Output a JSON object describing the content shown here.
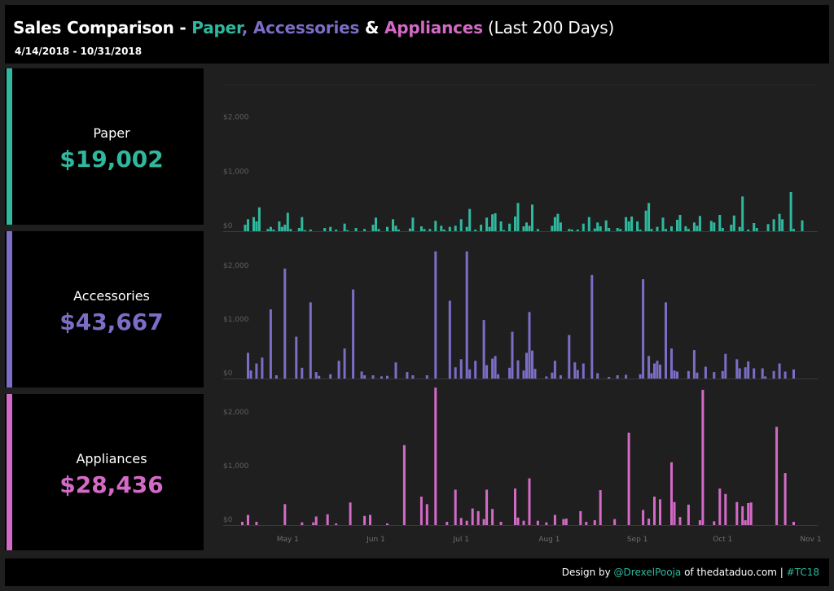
{
  "header": {
    "title_prefix": "Sales Comparison - ",
    "paper": "Paper",
    "comma": ",",
    "accessories": "Accessories",
    "amp": " & ",
    "appliances": "Appliances",
    "suffix": " (Last 200 Days)",
    "date_range": "4/14/2018 - 10/31/2018"
  },
  "colors": {
    "paper": "#2fb89e",
    "accessories": "#7a6ec6",
    "appliances": "#d36ac6"
  },
  "kpis": [
    {
      "label": "Paper",
      "value": "$19,002"
    },
    {
      "label": "Accessories",
      "value": "$43,667"
    },
    {
      "label": "Appliances",
      "value": "$28,436"
    }
  ],
  "footer": {
    "design_by": "Design by ",
    "handle": "@DrexelPooja",
    "of_site": " of thedataduo.com | ",
    "tag": "#TC18"
  },
  "chart_data": {
    "type": "bar",
    "x_range": [
      "2018-04-14",
      "2018-10-31"
    ],
    "x_ticks": [
      "May 1",
      "Jun 1",
      "Jul 1",
      "Aug 1",
      "Sep 1",
      "Oct 1",
      "Nov 1"
    ],
    "y_ticks": [
      "$0",
      "$1,000",
      "$2,000"
    ],
    "ylim": [
      0,
      2700
    ],
    "series": [
      {
        "name": "Paper",
        "points": [
          [
            "2018-04-16",
            120
          ],
          [
            "2018-04-17",
            220
          ],
          [
            "2018-04-19",
            260
          ],
          [
            "2018-04-20",
            180
          ],
          [
            "2018-04-21",
            440
          ],
          [
            "2018-04-24",
            40
          ],
          [
            "2018-04-25",
            80
          ],
          [
            "2018-04-26",
            30
          ],
          [
            "2018-04-28",
            180
          ],
          [
            "2018-04-29",
            80
          ],
          [
            "2018-04-30",
            120
          ],
          [
            "2018-05-01",
            340
          ],
          [
            "2018-05-02",
            40
          ],
          [
            "2018-05-05",
            60
          ],
          [
            "2018-05-06",
            260
          ],
          [
            "2018-05-07",
            20
          ],
          [
            "2018-05-09",
            30
          ],
          [
            "2018-05-14",
            60
          ],
          [
            "2018-05-16",
            80
          ],
          [
            "2018-05-18",
            30
          ],
          [
            "2018-05-21",
            140
          ],
          [
            "2018-05-22",
            20
          ],
          [
            "2018-05-25",
            60
          ],
          [
            "2018-05-28",
            40
          ],
          [
            "2018-05-31",
            120
          ],
          [
            "2018-06-01",
            250
          ],
          [
            "2018-06-02",
            40
          ],
          [
            "2018-06-05",
            80
          ],
          [
            "2018-06-07",
            220
          ],
          [
            "2018-06-08",
            100
          ],
          [
            "2018-06-09",
            30
          ],
          [
            "2018-06-13",
            50
          ],
          [
            "2018-06-14",
            250
          ],
          [
            "2018-06-17",
            90
          ],
          [
            "2018-06-18",
            40
          ],
          [
            "2018-06-20",
            40
          ],
          [
            "2018-06-22",
            190
          ],
          [
            "2018-06-24",
            100
          ],
          [
            "2018-06-25",
            30
          ],
          [
            "2018-06-27",
            80
          ],
          [
            "2018-06-29",
            100
          ],
          [
            "2018-07-01",
            220
          ],
          [
            "2018-07-03",
            80
          ],
          [
            "2018-07-04",
            410
          ],
          [
            "2018-07-06",
            30
          ],
          [
            "2018-07-08",
            120
          ],
          [
            "2018-07-10",
            250
          ],
          [
            "2018-07-11",
            80
          ],
          [
            "2018-07-12",
            310
          ],
          [
            "2018-07-13",
            330
          ],
          [
            "2018-07-15",
            180
          ],
          [
            "2018-07-16",
            20
          ],
          [
            "2018-07-18",
            140
          ],
          [
            "2018-07-20",
            270
          ],
          [
            "2018-07-21",
            520
          ],
          [
            "2018-07-23",
            90
          ],
          [
            "2018-07-24",
            160
          ],
          [
            "2018-07-25",
            100
          ],
          [
            "2018-07-26",
            490
          ],
          [
            "2018-07-28",
            40
          ],
          [
            "2018-08-02",
            100
          ],
          [
            "2018-08-03",
            260
          ],
          [
            "2018-08-04",
            320
          ],
          [
            "2018-08-05",
            160
          ],
          [
            "2018-08-08",
            40
          ],
          [
            "2018-08-09",
            30
          ],
          [
            "2018-08-11",
            30
          ],
          [
            "2018-08-13",
            140
          ],
          [
            "2018-08-15",
            260
          ],
          [
            "2018-08-17",
            50
          ],
          [
            "2018-08-18",
            160
          ],
          [
            "2018-08-19",
            90
          ],
          [
            "2018-08-21",
            200
          ],
          [
            "2018-08-22",
            60
          ],
          [
            "2018-08-25",
            60
          ],
          [
            "2018-08-26",
            40
          ],
          [
            "2018-08-28",
            260
          ],
          [
            "2018-08-29",
            180
          ],
          [
            "2018-08-30",
            270
          ],
          [
            "2018-09-01",
            180
          ],
          [
            "2018-09-02",
            30
          ],
          [
            "2018-09-04",
            380
          ],
          [
            "2018-09-05",
            520
          ],
          [
            "2018-09-06",
            40
          ],
          [
            "2018-09-08",
            80
          ],
          [
            "2018-09-10",
            250
          ],
          [
            "2018-09-11",
            40
          ],
          [
            "2018-09-13",
            90
          ],
          [
            "2018-09-15",
            210
          ],
          [
            "2018-09-16",
            300
          ],
          [
            "2018-09-18",
            90
          ],
          [
            "2018-09-19",
            40
          ],
          [
            "2018-09-21",
            160
          ],
          [
            "2018-09-22",
            100
          ],
          [
            "2018-09-23",
            280
          ],
          [
            "2018-09-27",
            190
          ],
          [
            "2018-09-28",
            160
          ],
          [
            "2018-09-30",
            300
          ],
          [
            "2018-10-01",
            60
          ],
          [
            "2018-10-04",
            120
          ],
          [
            "2018-10-05",
            290
          ],
          [
            "2018-10-07",
            80
          ],
          [
            "2018-10-08",
            640
          ],
          [
            "2018-10-10",
            30
          ],
          [
            "2018-10-12",
            150
          ],
          [
            "2018-10-13",
            60
          ],
          [
            "2018-10-17",
            130
          ],
          [
            "2018-10-19",
            220
          ],
          [
            "2018-10-21",
            320
          ],
          [
            "2018-10-22",
            220
          ],
          [
            "2018-10-25",
            720
          ],
          [
            "2018-10-26",
            40
          ],
          [
            "2018-10-29",
            200
          ]
        ]
      },
      {
        "name": "Accessories",
        "points": [
          [
            "2018-04-17",
            480
          ],
          [
            "2018-04-18",
            150
          ],
          [
            "2018-04-20",
            280
          ],
          [
            "2018-04-22",
            390
          ],
          [
            "2018-04-25",
            1290
          ],
          [
            "2018-04-27",
            60
          ],
          [
            "2018-04-30",
            2050
          ],
          [
            "2018-05-04",
            780
          ],
          [
            "2018-05-06",
            200
          ],
          [
            "2018-05-09",
            1420
          ],
          [
            "2018-05-11",
            120
          ],
          [
            "2018-05-12",
            50
          ],
          [
            "2018-05-16",
            80
          ],
          [
            "2018-05-19",
            330
          ],
          [
            "2018-05-21",
            560
          ],
          [
            "2018-05-24",
            1660
          ],
          [
            "2018-05-27",
            130
          ],
          [
            "2018-05-28",
            60
          ],
          [
            "2018-05-31",
            60
          ],
          [
            "2018-06-03",
            40
          ],
          [
            "2018-06-05",
            50
          ],
          [
            "2018-06-08",
            300
          ],
          [
            "2018-06-12",
            120
          ],
          [
            "2018-06-14",
            60
          ],
          [
            "2018-06-19",
            60
          ],
          [
            "2018-06-22",
            2370
          ],
          [
            "2018-06-27",
            1450
          ],
          [
            "2018-06-29",
            210
          ],
          [
            "2018-07-01",
            360
          ],
          [
            "2018-07-03",
            2370
          ],
          [
            "2018-07-04",
            170
          ],
          [
            "2018-07-06",
            330
          ],
          [
            "2018-07-09",
            1090
          ],
          [
            "2018-07-10",
            250
          ],
          [
            "2018-07-12",
            370
          ],
          [
            "2018-07-13",
            420
          ],
          [
            "2018-07-14",
            80
          ],
          [
            "2018-07-18",
            200
          ],
          [
            "2018-07-19",
            870
          ],
          [
            "2018-07-21",
            340
          ],
          [
            "2018-07-23",
            150
          ],
          [
            "2018-07-24",
            480
          ],
          [
            "2018-07-25",
            1240
          ],
          [
            "2018-07-26",
            520
          ],
          [
            "2018-07-27",
            180
          ],
          [
            "2018-07-31",
            40
          ],
          [
            "2018-08-02",
            110
          ],
          [
            "2018-08-03",
            330
          ],
          [
            "2018-08-05",
            60
          ],
          [
            "2018-08-08",
            810
          ],
          [
            "2018-08-10",
            300
          ],
          [
            "2018-08-11",
            160
          ],
          [
            "2018-08-13",
            280
          ],
          [
            "2018-08-16",
            1930
          ],
          [
            "2018-08-18",
            100
          ],
          [
            "2018-08-22",
            30
          ],
          [
            "2018-08-25",
            60
          ],
          [
            "2018-08-28",
            70
          ],
          [
            "2018-09-02",
            80
          ],
          [
            "2018-09-03",
            1850
          ],
          [
            "2018-09-05",
            420
          ],
          [
            "2018-09-06",
            100
          ],
          [
            "2018-09-07",
            280
          ],
          [
            "2018-09-08",
            330
          ],
          [
            "2018-09-09",
            260
          ],
          [
            "2018-09-11",
            1420
          ],
          [
            "2018-09-13",
            560
          ],
          [
            "2018-09-14",
            150
          ],
          [
            "2018-09-15",
            130
          ],
          [
            "2018-09-19",
            140
          ],
          [
            "2018-09-21",
            530
          ],
          [
            "2018-09-22",
            110
          ],
          [
            "2018-09-25",
            220
          ],
          [
            "2018-09-28",
            120
          ],
          [
            "2018-10-01",
            140
          ],
          [
            "2018-10-02",
            460
          ],
          [
            "2018-10-06",
            360
          ],
          [
            "2018-10-07",
            190
          ],
          [
            "2018-10-09",
            210
          ],
          [
            "2018-10-10",
            320
          ],
          [
            "2018-10-12",
            190
          ],
          [
            "2018-10-15",
            190
          ],
          [
            "2018-10-16",
            40
          ],
          [
            "2018-10-19",
            140
          ],
          [
            "2018-10-21",
            280
          ],
          [
            "2018-10-23",
            130
          ],
          [
            "2018-10-26",
            170
          ]
        ]
      },
      {
        "name": "Appliances",
        "points": [
          [
            "2018-04-15",
            60
          ],
          [
            "2018-04-17",
            190
          ],
          [
            "2018-04-20",
            60
          ],
          [
            "2018-04-30",
            390
          ],
          [
            "2018-05-06",
            50
          ],
          [
            "2018-05-10",
            50
          ],
          [
            "2018-05-11",
            160
          ],
          [
            "2018-05-15",
            200
          ],
          [
            "2018-05-18",
            30
          ],
          [
            "2018-05-23",
            420
          ],
          [
            "2018-05-28",
            170
          ],
          [
            "2018-05-30",
            190
          ],
          [
            "2018-06-05",
            30
          ],
          [
            "2018-06-11",
            1490
          ],
          [
            "2018-06-17",
            530
          ],
          [
            "2018-06-19",
            390
          ],
          [
            "2018-06-22",
            2560
          ],
          [
            "2018-06-26",
            60
          ],
          [
            "2018-06-29",
            660
          ],
          [
            "2018-07-01",
            130
          ],
          [
            "2018-07-03",
            80
          ],
          [
            "2018-07-05",
            310
          ],
          [
            "2018-07-07",
            260
          ],
          [
            "2018-07-09",
            110
          ],
          [
            "2018-07-10",
            660
          ],
          [
            "2018-07-12",
            300
          ],
          [
            "2018-07-15",
            60
          ],
          [
            "2018-07-20",
            680
          ],
          [
            "2018-07-21",
            140
          ],
          [
            "2018-07-23",
            80
          ],
          [
            "2018-07-25",
            870
          ],
          [
            "2018-07-28",
            80
          ],
          [
            "2018-07-31",
            50
          ],
          [
            "2018-08-03",
            190
          ],
          [
            "2018-08-06",
            110
          ],
          [
            "2018-08-07",
            120
          ],
          [
            "2018-08-12",
            260
          ],
          [
            "2018-08-14",
            60
          ],
          [
            "2018-08-17",
            90
          ],
          [
            "2018-08-19",
            650
          ],
          [
            "2018-08-24",
            110
          ],
          [
            "2018-08-29",
            1720
          ],
          [
            "2018-09-03",
            280
          ],
          [
            "2018-09-05",
            120
          ],
          [
            "2018-09-07",
            530
          ],
          [
            "2018-09-09",
            480
          ],
          [
            "2018-09-13",
            1170
          ],
          [
            "2018-09-14",
            430
          ],
          [
            "2018-09-16",
            150
          ],
          [
            "2018-09-19",
            380
          ],
          [
            "2018-09-23",
            90
          ],
          [
            "2018-09-24",
            2520
          ],
          [
            "2018-09-28",
            70
          ],
          [
            "2018-09-30",
            680
          ],
          [
            "2018-10-02",
            580
          ],
          [
            "2018-10-06",
            430
          ],
          [
            "2018-10-08",
            350
          ],
          [
            "2018-10-09",
            90
          ],
          [
            "2018-10-10",
            410
          ],
          [
            "2018-10-11",
            420
          ],
          [
            "2018-10-20",
            1830
          ],
          [
            "2018-10-23",
            970
          ],
          [
            "2018-10-26",
            60
          ]
        ]
      }
    ]
  }
}
